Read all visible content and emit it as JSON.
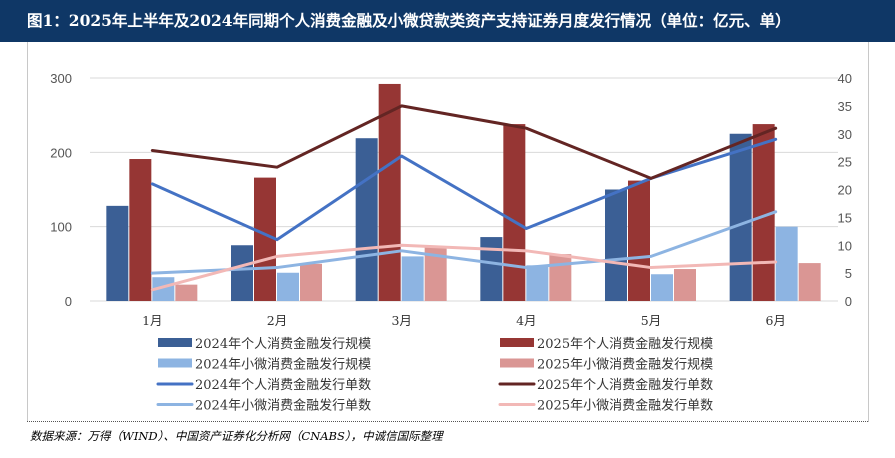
{
  "title": "图1：2025年上半年及2024年同期个人消费金融及小微贷款类资产支持证券月度发行情况（单位：亿元、单）",
  "source": "数据来源：万得（WIND）、中国资产证券化分析网（CNABS），中诚信国际整理",
  "colors": {
    "title_bg": "#0f3766",
    "series_2024_personal_scale": "#3b5f95",
    "series_2025_personal_scale": "#963634",
    "series_2024_micro_scale": "#8db4e2",
    "series_2025_micro_scale": "#da9694",
    "series_2024_personal_count": "#4472c4",
    "series_2025_personal_count": "#632523",
    "series_2024_micro_count": "#8db4e2",
    "series_2025_micro_count": "#f2b8b6"
  },
  "chart_data": {
    "type": "bar",
    "categories": [
      "1月",
      "2月",
      "3月",
      "4月",
      "5月",
      "6月"
    ],
    "ylim": [
      0,
      300
    ],
    "y_ticks": [
      "0",
      "100",
      "200",
      "300"
    ],
    "y2lim": [
      0,
      40
    ],
    "y2_ticks": [
      "0",
      "5",
      "10",
      "15",
      "20",
      "25",
      "30",
      "35",
      "40"
    ],
    "grid": true,
    "legend_position": "bottom",
    "series": [
      {
        "name": "2024年个人消费金融发行规模",
        "type": "bar",
        "axis": "left",
        "values": [
          128,
          75,
          219,
          86,
          150,
          225
        ]
      },
      {
        "name": "2025年个人消费金融发行规模",
        "type": "bar",
        "axis": "left",
        "values": [
          191,
          166,
          292,
          238,
          162,
          238
        ]
      },
      {
        "name": "2024年小微消费金融发行规模",
        "type": "bar",
        "axis": "left",
        "values": [
          32,
          38,
          60,
          48,
          36,
          100
        ]
      },
      {
        "name": "2025年小微消费金融发行规模",
        "type": "bar",
        "axis": "left",
        "values": [
          22,
          50,
          72,
          63,
          43,
          51
        ]
      },
      {
        "name": "2024年个人消费金融发行单数",
        "type": "line",
        "axis": "right",
        "values": [
          21,
          11,
          26,
          13,
          22,
          29
        ]
      },
      {
        "name": "2025年个人消费金融发行单数",
        "type": "line",
        "axis": "right",
        "values": [
          27,
          24,
          35,
          31,
          22,
          31
        ]
      },
      {
        "name": "2024年小微消费金融发行单数",
        "type": "line",
        "axis": "right",
        "values": [
          5,
          6,
          9,
          6,
          8,
          16
        ]
      },
      {
        "name": "2025年小微消费金融发行单数",
        "type": "line",
        "axis": "right",
        "values": [
          2,
          8,
          10,
          9,
          6,
          7
        ]
      }
    ]
  }
}
